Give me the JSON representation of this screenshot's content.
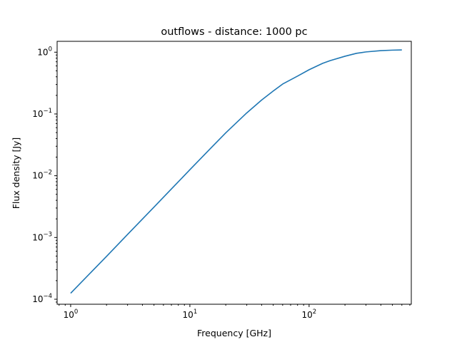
{
  "chart_data": {
    "type": "line",
    "title": "outflows - distance: 1000 pc",
    "xlabel": "Frequency [GHz]",
    "ylabel": "Flux density [Jy]",
    "xscale": "log",
    "yscale": "log",
    "xlim": [
      0.77,
      720
    ],
    "ylim": [
      8.3e-05,
      1.5
    ],
    "grid": false,
    "line_color": "#1f77b4",
    "x_ticks": [
      {
        "value": 1,
        "base": "10",
        "exp": "0"
      },
      {
        "value": 10,
        "base": "10",
        "exp": "1"
      },
      {
        "value": 100,
        "base": "10",
        "exp": "2"
      }
    ],
    "y_ticks": [
      {
        "value": 0.0001,
        "base": "10",
        "exp": "−4"
      },
      {
        "value": 0.001,
        "base": "10",
        "exp": "−3"
      },
      {
        "value": 0.01,
        "base": "10",
        "exp": "−2"
      },
      {
        "value": 0.1,
        "base": "10",
        "exp": "−1"
      },
      {
        "value": 1,
        "base": "10",
        "exp": "0"
      }
    ],
    "series": [
      {
        "x": [
          1,
          2,
          3,
          5,
          7,
          10,
          15,
          20,
          30,
          40,
          50,
          60,
          80,
          100,
          130,
          150,
          200,
          250,
          300,
          400,
          500,
          600
        ],
        "y": [
          0.000125,
          0.000495,
          0.00112,
          0.0031,
          0.0061,
          0.0125,
          0.028,
          0.0495,
          0.104,
          0.168,
          0.235,
          0.305,
          0.41,
          0.52,
          0.66,
          0.73,
          0.86,
          0.96,
          1.01,
          1.06,
          1.08,
          1.09
        ]
      }
    ]
  }
}
